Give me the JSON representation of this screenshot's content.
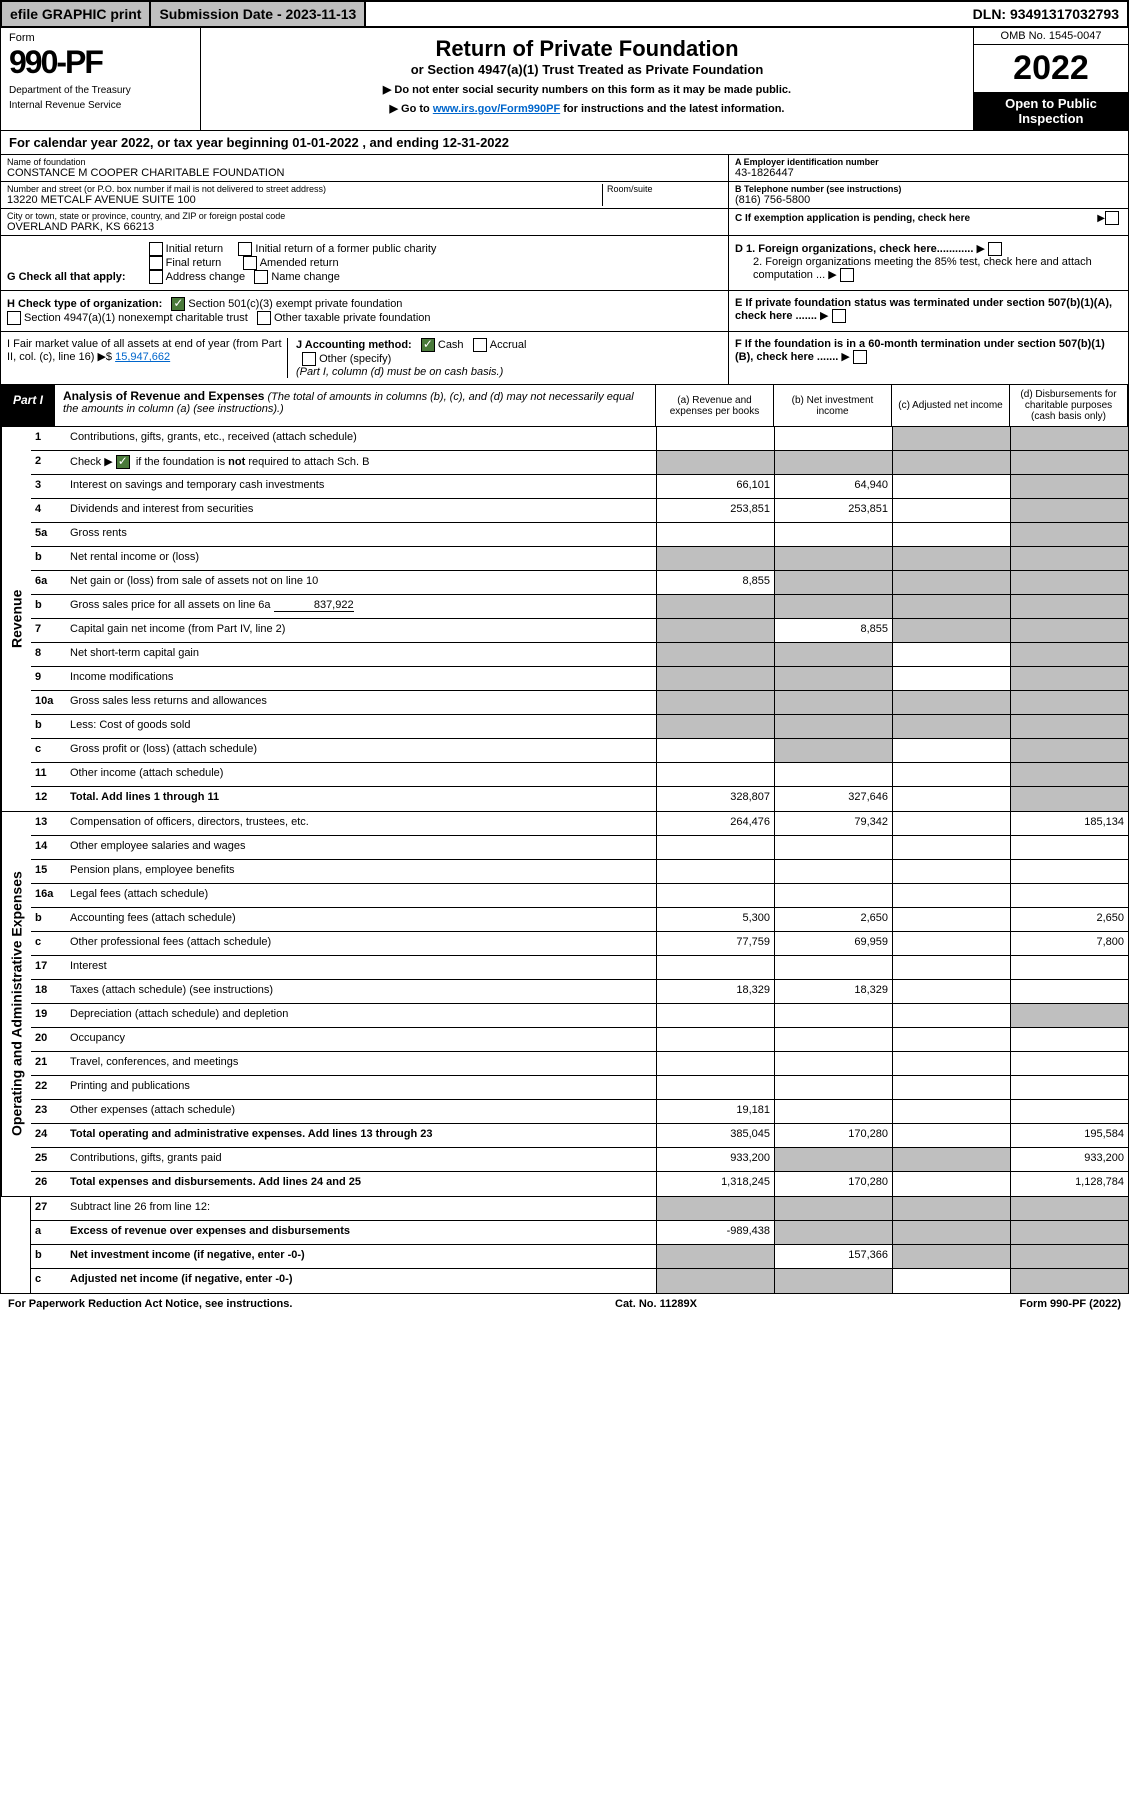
{
  "topbar": {
    "efile": "efile GRAPHIC print",
    "subdate": "Submission Date - 2023-11-13",
    "dln": "DLN: 93491317032793"
  },
  "header": {
    "form_label": "Form",
    "form_num": "990-PF",
    "dept1": "Department of the Treasury",
    "dept2": "Internal Revenue Service",
    "title": "Return of Private Foundation",
    "subtitle": "or Section 4947(a)(1) Trust Treated as Private Foundation",
    "note1": "▶ Do not enter social security numbers on this form as it may be made public.",
    "note2_pre": "▶ Go to ",
    "note2_link": "www.irs.gov/Form990PF",
    "note2_post": " for instructions and the latest information.",
    "omb": "OMB No. 1545-0047",
    "year": "2022",
    "open": "Open to Public Inspection"
  },
  "calyear": "For calendar year 2022, or tax year beginning 01-01-2022           , and ending 12-31-2022",
  "info": {
    "name_label": "Name of foundation",
    "name": "CONSTANCE M COOPER CHARITABLE FOUNDATION",
    "addr_label": "Number and street (or P.O. box number if mail is not delivered to street address)",
    "addr": "13220 METCALF AVENUE SUITE 100",
    "room_label": "Room/suite",
    "city_label": "City or town, state or province, country, and ZIP or foreign postal code",
    "city": "OVERLAND PARK, KS  66213",
    "ein_label": "A Employer identification number",
    "ein": "43-1826447",
    "tel_label": "B Telephone number (see instructions)",
    "tel": "(816) 756-5800",
    "c_label": "C If exemption application is pending, check here",
    "d1_label": "D 1. Foreign organizations, check here............",
    "d2_label": "2. Foreign organizations meeting the 85% test, check here and attach computation ...",
    "e_label": "E  If private foundation status was terminated under section 507(b)(1)(A), check here .......",
    "f_label": "F  If the foundation is in a 60-month termination under section 507(b)(1)(B), check here .......",
    "g_label": "G Check all that apply:",
    "g_opts": [
      "Initial return",
      "Final return",
      "Address change",
      "Initial return of a former public charity",
      "Amended return",
      "Name change"
    ],
    "h_label": "H Check type of organization:",
    "h_opt1": "Section 501(c)(3) exempt private foundation",
    "h_opt2": "Section 4947(a)(1) nonexempt charitable trust",
    "h_opt3": "Other taxable private foundation",
    "i_label": "I Fair market value of all assets at end of year (from Part II, col. (c), line 16) ▶$ ",
    "i_value": "15,947,662",
    "j_label": "J Accounting method:",
    "j_cash": "Cash",
    "j_accrual": "Accrual",
    "j_other": "Other (specify)",
    "j_note": "(Part I, column (d) must be on cash basis.)"
  },
  "part1": {
    "label": "Part I",
    "title": "Analysis of Revenue and Expenses",
    "title_note": " (The total of amounts in columns (b), (c), and (d) may not necessarily equal the amounts in column (a) (see instructions).)",
    "col_a": "(a) Revenue and expenses per books",
    "col_b": "(b) Net investment income",
    "col_c": "(c) Adjusted net income",
    "col_d": "(d) Disbursements for charitable purposes (cash basis only)"
  },
  "revenue_label": "Revenue",
  "expenses_label": "Operating and Administrative Expenses",
  "rows": [
    {
      "n": "1",
      "d": "",
      "a": "",
      "b": "",
      "c": "",
      "sh": [
        "c",
        "d"
      ]
    },
    {
      "n": "2",
      "d": "",
      "a": "",
      "b": "",
      "c": "",
      "sh": [
        "a",
        "b",
        "c",
        "d"
      ],
      "bold_not": true
    },
    {
      "n": "3",
      "d": "",
      "a": "66,101",
      "b": "64,940",
      "c": "",
      "sh": [
        "d"
      ]
    },
    {
      "n": "4",
      "d": "",
      "a": "253,851",
      "b": "253,851",
      "c": "",
      "sh": [
        "d"
      ]
    },
    {
      "n": "5a",
      "d": "",
      "a": "",
      "b": "",
      "c": "",
      "sh": [
        "d"
      ]
    },
    {
      "n": "b",
      "d": "",
      "a": "",
      "b": "",
      "c": "",
      "sh": [
        "a",
        "b",
        "c",
        "d"
      ],
      "inline": true
    },
    {
      "n": "6a",
      "d": "",
      "a": "8,855",
      "b": "",
      "c": "",
      "sh": [
        "b",
        "c",
        "d"
      ]
    },
    {
      "n": "b",
      "d": "",
      "a": "",
      "b": "",
      "c": "",
      "sh": [
        "a",
        "b",
        "c",
        "d"
      ],
      "inline_val": "837,922"
    },
    {
      "n": "7",
      "d": "",
      "a": "",
      "b": "8,855",
      "c": "",
      "sh": [
        "a",
        "c",
        "d"
      ]
    },
    {
      "n": "8",
      "d": "",
      "a": "",
      "b": "",
      "c": "",
      "sh": [
        "a",
        "b",
        "d"
      ]
    },
    {
      "n": "9",
      "d": "",
      "a": "",
      "b": "",
      "c": "",
      "sh": [
        "a",
        "b",
        "d"
      ]
    },
    {
      "n": "10a",
      "d": "",
      "a": "",
      "b": "",
      "c": "",
      "sh": [
        "a",
        "b",
        "c",
        "d"
      ],
      "inline": true
    },
    {
      "n": "b",
      "d": "",
      "a": "",
      "b": "",
      "c": "",
      "sh": [
        "a",
        "b",
        "c",
        "d"
      ],
      "inline": true
    },
    {
      "n": "c",
      "d": "",
      "a": "",
      "b": "",
      "c": "",
      "sh": [
        "b",
        "d"
      ]
    },
    {
      "n": "11",
      "d": "",
      "a": "",
      "b": "",
      "c": "",
      "sh": [
        "d"
      ]
    },
    {
      "n": "12",
      "d": "",
      "a": "328,807",
      "b": "327,646",
      "c": "",
      "sh": [
        "d"
      ],
      "bold": true
    }
  ],
  "exp_rows": [
    {
      "n": "13",
      "d": "185,134",
      "a": "264,476",
      "b": "79,342",
      "c": ""
    },
    {
      "n": "14",
      "d": "",
      "a": "",
      "b": "",
      "c": ""
    },
    {
      "n": "15",
      "d": "",
      "a": "",
      "b": "",
      "c": ""
    },
    {
      "n": "16a",
      "d": "",
      "a": "",
      "b": "",
      "c": ""
    },
    {
      "n": "b",
      "d": "2,650",
      "a": "5,300",
      "b": "2,650",
      "c": ""
    },
    {
      "n": "c",
      "d": "7,800",
      "a": "77,759",
      "b": "69,959",
      "c": ""
    },
    {
      "n": "17",
      "d": "",
      "a": "",
      "b": "",
      "c": ""
    },
    {
      "n": "18",
      "d": "",
      "a": "18,329",
      "b": "18,329",
      "c": ""
    },
    {
      "n": "19",
      "d": "",
      "a": "",
      "b": "",
      "c": "",
      "sh": [
        "d"
      ]
    },
    {
      "n": "20",
      "d": "",
      "a": "",
      "b": "",
      "c": ""
    },
    {
      "n": "21",
      "d": "",
      "a": "",
      "b": "",
      "c": ""
    },
    {
      "n": "22",
      "d": "",
      "a": "",
      "b": "",
      "c": ""
    },
    {
      "n": "23",
      "d": "",
      "a": "19,181",
      "b": "",
      "c": ""
    },
    {
      "n": "24",
      "d": "195,584",
      "a": "385,045",
      "b": "170,280",
      "c": "",
      "bold": true
    },
    {
      "n": "25",
      "d": "933,200",
      "a": "933,200",
      "b": "",
      "c": "",
      "sh": [
        "b",
        "c"
      ]
    },
    {
      "n": "26",
      "d": "1,128,784",
      "a": "1,318,245",
      "b": "170,280",
      "c": "",
      "bold": true
    }
  ],
  "bottom_rows": [
    {
      "n": "27",
      "d": "",
      "a": "",
      "b": "",
      "c": "",
      "sh": [
        "a",
        "b",
        "c",
        "d"
      ]
    },
    {
      "n": "a",
      "d": "",
      "a": "-989,438",
      "b": "",
      "c": "",
      "sh": [
        "b",
        "c",
        "d"
      ],
      "bold": true
    },
    {
      "n": "b",
      "d": "",
      "a": "",
      "b": "157,366",
      "c": "",
      "sh": [
        "a",
        "c",
        "d"
      ],
      "bold": true
    },
    {
      "n": "c",
      "d": "",
      "a": "",
      "b": "",
      "c": "",
      "sh": [
        "a",
        "b",
        "d"
      ],
      "bold": true
    }
  ],
  "footer": {
    "left": "For Paperwork Reduction Act Notice, see instructions.",
    "center": "Cat. No. 11289X",
    "right": "Form 990-PF (2022)"
  },
  "colors": {
    "shaded": "#bfbfbf",
    "link": "#0066cc",
    "check": "#4a7a3a"
  }
}
